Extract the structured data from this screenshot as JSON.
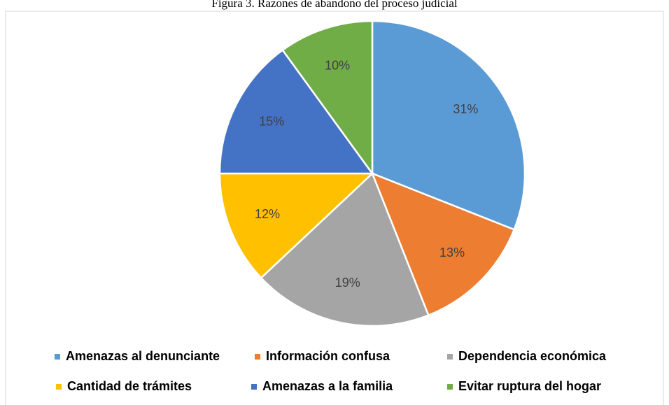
{
  "chart_data": {
    "type": "pie",
    "title": "Figura 3. Razones de abandono del proceso judicial",
    "categories": [
      "Amenazas al denunciante",
      "Información confusa",
      "Dependencia económica",
      "Cantidad de trámites",
      "Amenazas a la familia",
      "Evitar ruptura del hogar"
    ],
    "values": [
      31,
      13,
      19,
      12,
      15,
      10
    ],
    "value_labels": [
      "31%",
      "13%",
      "19%",
      "12%",
      "15%",
      "10%"
    ],
    "colors": [
      "#5b9bd5",
      "#ed7d31",
      "#a5a5a5",
      "#ffc000",
      "#4472c4",
      "#70ad47"
    ],
    "legend": "bottom"
  }
}
